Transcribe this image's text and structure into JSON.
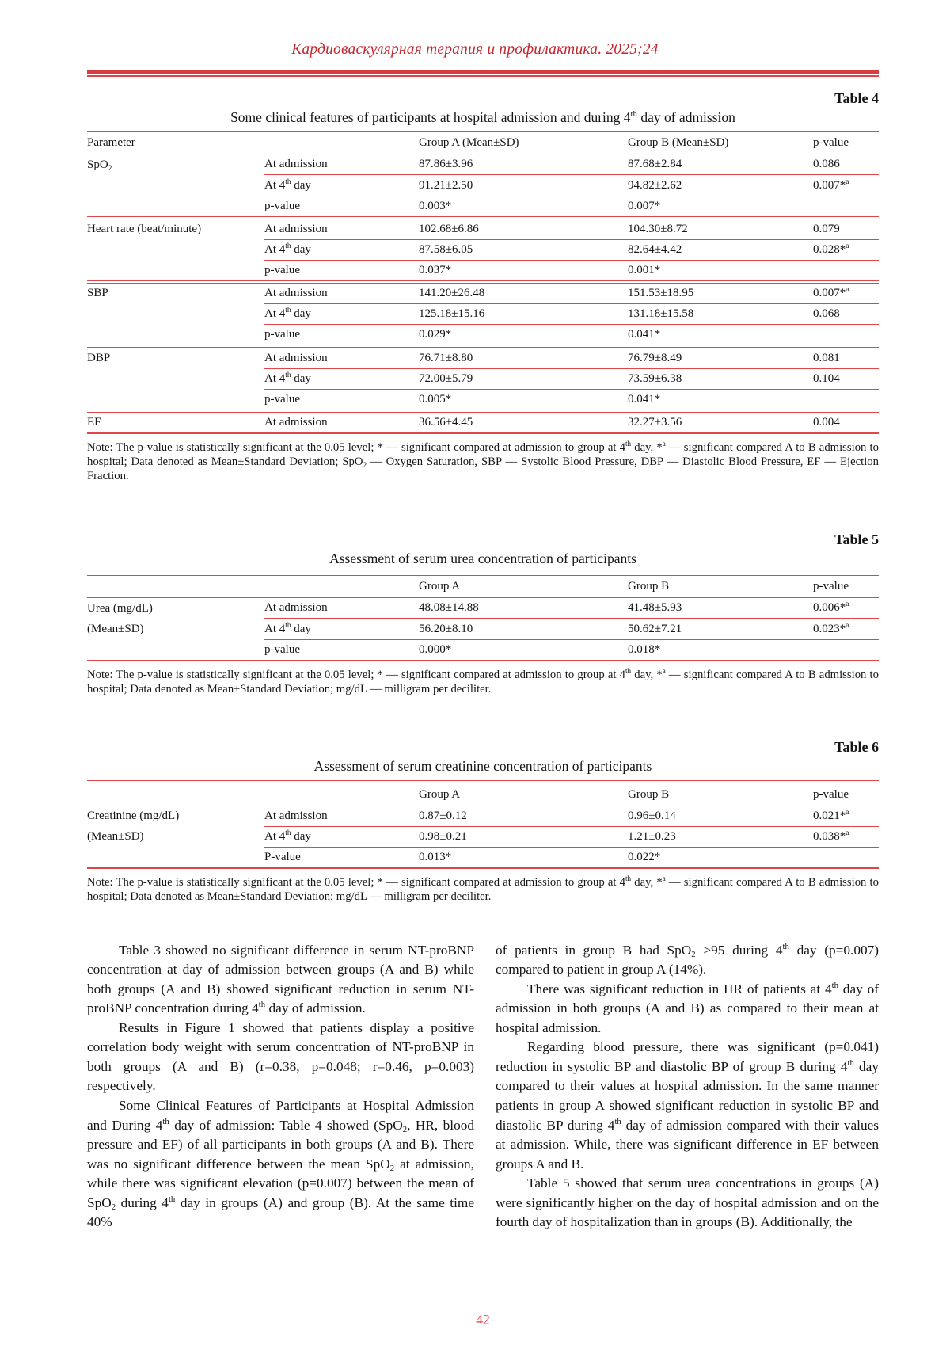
{
  "page": {
    "journal_header": "Кардиоваскулярная терапия и профилактика. 2025;24",
    "page_number": "42",
    "colors": {
      "header_text": "#c4262e",
      "table_rules": "#e0454b",
      "page_number": "#e23b41",
      "body_text": "#141414"
    }
  },
  "tables": [
    {
      "label": "Table 4",
      "caption": "Some clinical features of participants at hospital admission and during 4^{th} day of admission",
      "columns": [
        "Parameter",
        "",
        "Group A (Mean±SD)",
        "Group B (Mean±SD)",
        "p-value"
      ],
      "rows": [
        {
          "sep": "partial",
          "cells": [
            "SpO_{2}",
            "At admission",
            "87.86±3.96",
            "87.68±2.84",
            "0.086"
          ]
        },
        {
          "sep": "partial",
          "cells": [
            "",
            "At 4^{th} day",
            "91.21±2.50",
            "94.82±2.62",
            "0.007*^{a}"
          ]
        },
        {
          "sep": "group",
          "cells": [
            "",
            "p-value",
            "0.003*",
            "0.007*",
            ""
          ]
        },
        {
          "sep": "partial",
          "cells": [
            "Heart rate (beat/minute)",
            "At admission",
            "102.68±6.86",
            "104.30±8.72",
            "0.079"
          ]
        },
        {
          "sep": "partial",
          "cells": [
            "",
            "At 4^{th} day",
            "87.58±6.05",
            "82.64±4.42",
            "0.028*^{a}"
          ]
        },
        {
          "sep": "group",
          "cells": [
            "",
            "p-value",
            "0.037*",
            "0.001*",
            ""
          ]
        },
        {
          "sep": "partial",
          "cells": [
            "SBP",
            "At admission",
            "141.20±26.48",
            "151.53±18.95",
            "0.007*^{a}"
          ]
        },
        {
          "sep": "partial",
          "cells": [
            "",
            "At 4^{th} day",
            "125.18±15.16",
            "131.18±15.58",
            "0.068"
          ]
        },
        {
          "sep": "group",
          "cells": [
            "",
            "p-value",
            "0.029*",
            "0.041*",
            ""
          ]
        },
        {
          "sep": "partial",
          "cells": [
            "DBP",
            "At admission",
            "76.71±8.80",
            "76.79±8.49",
            "0.081"
          ]
        },
        {
          "sep": "partial",
          "cells": [
            "",
            "At 4^{th} day",
            "72.00±5.79",
            "73.59±6.38",
            "0.104"
          ]
        },
        {
          "sep": "group",
          "cells": [
            "",
            "p-value",
            "0.005*",
            "0.041*",
            ""
          ]
        },
        {
          "sep": "none",
          "cells": [
            "EF",
            "At admission",
            "36.56±4.45",
            "32.27±3.56",
            "0.004"
          ]
        }
      ],
      "note": "Note: The p-value is statistically significant at the 0.05 level; * — significant compared at admission to group at 4^{th} day, *^{a} — significant compared A to B admission to hospital; Data denoted as Mean±Standard Deviation; SpO_{2} — Oxygen Saturation, SBP — Systolic Blood Pressure, DBP — Diastolic Blood Pressure, EF — Ejection Fraction."
    },
    {
      "label": "Table 5",
      "caption": "Assessment of serum urea concentration of participants",
      "columns": [
        "",
        "",
        "Group A",
        "Group B",
        "p-value"
      ],
      "rows": [
        {
          "sep": "partial",
          "cells": [
            "Urea (mg/dL)",
            "At admission",
            "48.08±14.88",
            "41.48±5.93",
            "0.006*^{a}"
          ]
        },
        {
          "sep": "partial",
          "cells": [
            "(Mean±SD)",
            "At 4^{th} day",
            "56.20±8.10",
            "50.62±7.21",
            "0.023*^{a}"
          ]
        },
        {
          "sep": "none",
          "cells": [
            "",
            "p-value",
            "0.000*",
            "0.018*",
            ""
          ]
        }
      ],
      "note": "Note: The p-value is statistically significant at the 0.05 level; * — significant compared at admission to group at 4^{th} day, *^{a} — significant compared A to B admission to hospital; Data denoted as Mean±Standard Deviation; mg/dL — milligram per deciliter."
    },
    {
      "label": "Table 6",
      "caption": "Assessment of serum creatinine concentration of participants",
      "columns": [
        "",
        "",
        "Group A",
        "Group B",
        "p-value"
      ],
      "rows": [
        {
          "sep": "partial",
          "cells": [
            "Creatinine (mg/dL)",
            "At admission",
            "0.87±0.12",
            "0.96±0.14",
            "0.021*^{a}"
          ]
        },
        {
          "sep": "partial",
          "cells": [
            "(Mean±SD)",
            "At 4^{th} day",
            "0.98±0.21",
            "1.21±0.23",
            "0.038*^{a}"
          ]
        },
        {
          "sep": "none",
          "cells": [
            "",
            "P-value",
            "0.013*",
            "0.022*",
            ""
          ]
        }
      ],
      "note": "Note: The p-value is statistically significant at the 0.05 level; * — significant compared at admission to group at 4^{th} day, *^{a} — significant compared A to B admission to hospital; Data denoted as Mean±Standard Deviation; mg/dL — milligram per deciliter."
    }
  ],
  "body": {
    "left_column": [
      {
        "indent": true,
        "text": "Table 3 showed no significant difference in serum NT-proBNP concentration at day of admission between groups (A and B) while both groups (A and B) showed significant reduction in serum NT-proBNP concentration during 4^{th} day of admission."
      },
      {
        "indent": true,
        "text": "Results in Figure 1 showed that patients display a positive correlation body weight with serum concentration of NT-proBNP in both groups (A and B) (r=0.38, p=0.048; r=0.46, p=0.003) respectively."
      },
      {
        "indent": true,
        "text": "Some Clinical Features of Participants at Hospital Admission and During 4^{th} day of admission: Table 4 showed (SpO_{2}, HR, blood pressure and EF) of all participants in both groups (A and B). There was no significant difference between the mean SpO_{2} at admission, while there was significant elevation (p=0.007) between the mean of SpO_{2} during 4^{th} day in groups (A) and group (B). At the same time 40%"
      }
    ],
    "right_column": [
      {
        "indent": false,
        "text": "of patients in group B had SpO_{2} >95 during 4^{th} day (p=0.007) compared to patient in group A (14%)."
      },
      {
        "indent": true,
        "text": "There was significant reduction in HR of patients at 4^{th} day of admission in both groups (A and B) as compared to their mean at hospital admission."
      },
      {
        "indent": true,
        "text": "Regarding blood pressure, there was significant (p=0.041) reduction in systolic BP and diastolic BP of group B during 4^{th} day compared to their values at hospital admission. In the same manner patients in group A showed significant reduction in systolic BP and diastolic BP during 4^{th} day of admission compared with their values at admission. While, there was significant difference in EF between groups A and B."
      },
      {
        "indent": true,
        "text": "Table 5 showed that serum urea concentrations in groups (A) were significantly higher on the day of hospital admission and on the fourth day of hospitalization than in groups (B). Additionally, the"
      }
    ]
  }
}
